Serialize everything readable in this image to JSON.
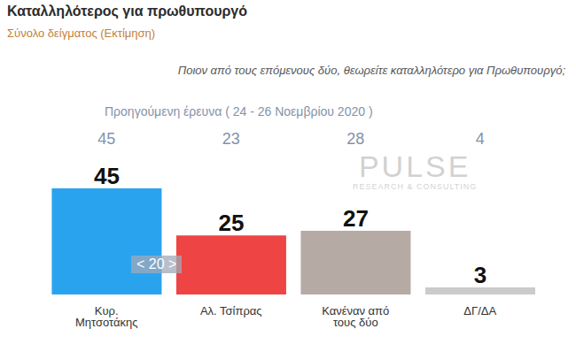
{
  "chart_data": {
    "type": "bar",
    "title": "Καταλληλότερος για πρωθυπουργό",
    "subtitle": "Σύνολο δείγματος (Εκτίμηση)",
    "question": "Ποιον από τους επόμενους δύο, θεωρείτε καταλληλότερο για Πρωθυπουργό;",
    "categories": [
      "Κυρ. Μητσοτάκης",
      "Αλ. Τσίπρας",
      "Κανέναν από τους δύο",
      "ΔΓ/ΔΑ"
    ],
    "values": [
      45,
      25,
      27,
      3
    ],
    "colors": [
      "#2aa3ef",
      "#ef4444",
      "#b6aaa4",
      "#cbcbcb"
    ],
    "previous_label": "Προηγούμενη έρευνα ( 24 - 26 Νοεμβρίου 2020 )",
    "previous_values": [
      45,
      23,
      28,
      4
    ],
    "annotation": "< 20 >",
    "watermark": {
      "title": "PULSE",
      "subtitle": "RESEARCH & CONSULTING"
    },
    "ylim": [
      0,
      45
    ],
    "data_labels": true,
    "tick_labels": "x",
    "grid": false
  }
}
